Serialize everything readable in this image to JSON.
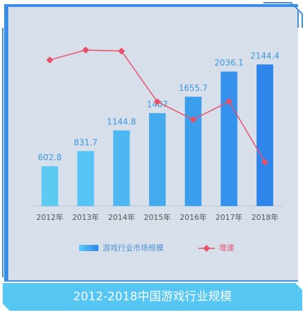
{
  "chart_data": {
    "type": "bar",
    "title": "2012-2018中国游戏行业规模",
    "categories": [
      "2012年",
      "2013年",
      "2014年",
      "2015年",
      "2016年",
      "2017年",
      "2018年"
    ],
    "series": [
      {
        "name": "游戏行业市场规模",
        "type": "bar",
        "colors": [
          "#5ccbf4",
          "#55c3f3",
          "#4cb7f1",
          "#44abf0",
          "#3c9fee",
          "#3592ec",
          "#2f86ea"
        ],
        "values": [
          602.8,
          831.7,
          1144.8,
          1407,
          1655.7,
          2036.1,
          2144.4
        ]
      },
      {
        "name": "增速",
        "type": "line",
        "axis": "y2",
        "color": "#e8506a",
        "values": [
          35.1,
          38.0,
          37.7,
          22.9,
          17.7,
          23.0,
          5.3
        ]
      }
    ],
    "ylim": [
      0,
      2700
    ],
    "y2lim": [
      -7.5,
      44.5
    ]
  }
}
